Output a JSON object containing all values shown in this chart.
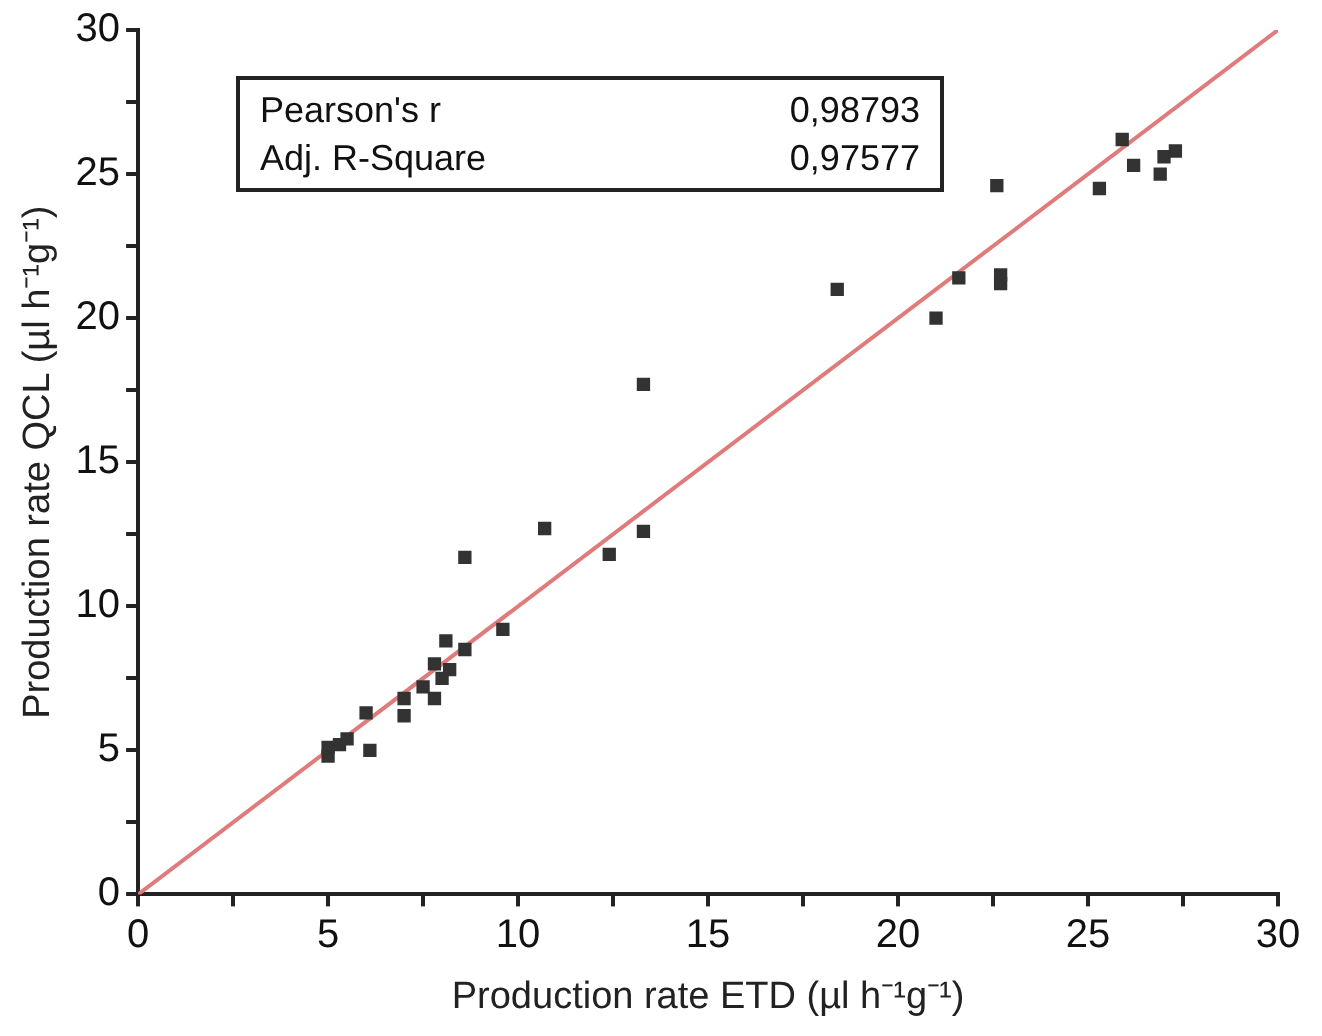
{
  "chart_data": {
    "type": "scatter",
    "xlabel": "Production rate ETD (µl h⁻¹g⁻¹)",
    "ylabel": "Production rate QCL (µl h⁻¹g⁻¹)",
    "xlim": [
      0,
      30
    ],
    "ylim": [
      0,
      30
    ],
    "xticks": [
      0,
      {
        "value": 2.5,
        "label": null
      },
      5,
      {
        "value": 7.5,
        "label": null
      },
      10,
      {
        "value": 12.5,
        "label": null
      },
      15,
      {
        "value": 17.5,
        "label": null
      },
      20,
      {
        "value": 22.5,
        "label": null
      },
      25,
      {
        "value": 27.5,
        "label": null
      },
      30
    ],
    "yticks": [
      0,
      {
        "value": 2.5,
        "label": null
      },
      5,
      {
        "value": 7.5,
        "label": null
      },
      10,
      {
        "value": 12.5,
        "label": null
      },
      15,
      {
        "value": 17.5,
        "label": null
      },
      20,
      {
        "value": 22.5,
        "label": null
      },
      25,
      {
        "value": 27.5,
        "label": null
      },
      30
    ],
    "grid": false,
    "legend": false,
    "marker": "square",
    "annotations": [
      "Pearson's r",
      "0,98793",
      "Adj. R-Square",
      "0,97577"
    ],
    "series": [
      {
        "type": "scatter",
        "color": "#333333",
        "x": [
          5.0,
          5.0,
          5.3,
          5.5,
          6.0,
          6.1,
          7.0,
          7.0,
          7.5,
          7.8,
          7.8,
          8.0,
          8.1,
          8.2,
          8.6,
          8.6,
          9.6,
          10.7,
          12.4,
          13.3,
          13.3,
          18.4,
          21.0,
          21.6,
          22.6,
          22.7,
          22.7,
          25.3,
          25.9,
          26.2,
          26.9,
          27.0,
          27.3
        ],
        "values": [
          4.8,
          5.1,
          5.2,
          5.4,
          6.3,
          5.0,
          6.2,
          6.8,
          7.2,
          8.0,
          6.8,
          7.5,
          8.8,
          7.8,
          11.7,
          8.5,
          9.2,
          12.7,
          11.8,
          17.7,
          12.6,
          21.0,
          20.0,
          21.4,
          24.6,
          21.5,
          21.2,
          24.5,
          26.2,
          25.3,
          25.0,
          25.6,
          25.8
        ]
      },
      {
        "type": "line",
        "color": "#e07b7b",
        "x": [
          0,
          30
        ],
        "values": [
          0,
          30
        ],
        "marker": "none",
        "line_style": "solid"
      }
    ]
  }
}
